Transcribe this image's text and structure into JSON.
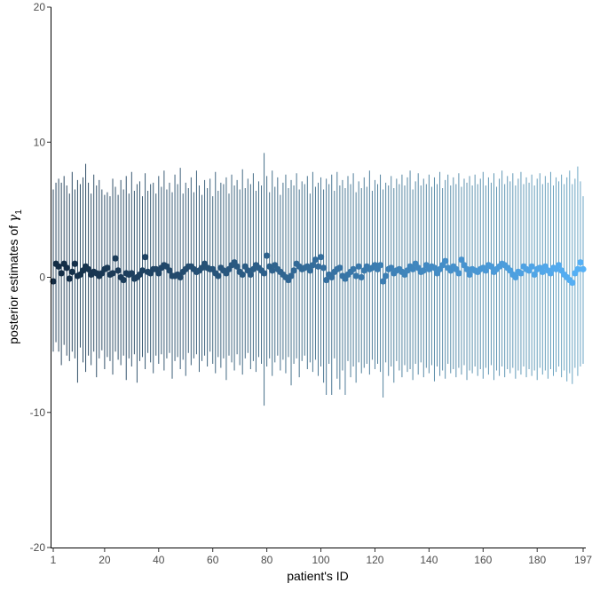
{
  "chart_data": {
    "type": "scatter",
    "title": "",
    "xlabel": "patient's ID",
    "ylabel_text": "posterior estimates of ",
    "ylabel_symbol": "γ",
    "ylabel_subscript": "1",
    "xlim": [
      1,
      197
    ],
    "ylim": [
      -20,
      20
    ],
    "x_ticks": [
      "1",
      "20",
      "40",
      "60",
      "80",
      "100",
      "120",
      "140",
      "160",
      "180",
      "197"
    ],
    "y_ticks": [
      "20",
      "10",
      "0",
      "-10",
      "-20"
    ],
    "grid": false,
    "legend": "none",
    "n_patients": 197,
    "color_gradient": [
      "#132B43",
      "#56B1F7"
    ],
    "points": [
      {
        "x": 1,
        "y": -0.3,
        "lo": -5.5,
        "hi": 6.5
      },
      {
        "x": 2,
        "y": 1.0,
        "lo": -4.8,
        "hi": 7.0
      },
      {
        "x": 3,
        "y": 0.8,
        "lo": -5.5,
        "hi": 7.3
      },
      {
        "x": 4,
        "y": 0.3,
        "lo": -6.5,
        "hi": 7.0
      },
      {
        "x": 5,
        "y": 1.0,
        "lo": -5.0,
        "hi": 7.5
      },
      {
        "x": 6,
        "y": 0.7,
        "lo": -5.8,
        "hi": 6.8
      },
      {
        "x": 7,
        "y": -0.1,
        "lo": -6.2,
        "hi": 6.2
      },
      {
        "x": 8,
        "y": 0.4,
        "lo": -5.5,
        "hi": 7.8
      },
      {
        "x": 9,
        "y": 1.0,
        "lo": -6.0,
        "hi": 6.5
      },
      {
        "x": 10,
        "y": 0.1,
        "lo": -7.8,
        "hi": 7.2
      },
      {
        "x": 11,
        "y": 0.2,
        "lo": -5.2,
        "hi": 6.9
      },
      {
        "x": 12,
        "y": 0.5,
        "lo": -6.3,
        "hi": 7.4
      },
      {
        "x": 13,
        "y": 0.8,
        "lo": -7.0,
        "hi": 8.4
      },
      {
        "x": 14,
        "y": 0.6,
        "lo": -5.8,
        "hi": 7.0
      },
      {
        "x": 15,
        "y": 0.2,
        "lo": -6.5,
        "hi": 6.2
      },
      {
        "x": 16,
        "y": 0.4,
        "lo": -5.5,
        "hi": 7.6
      },
      {
        "x": 17,
        "y": 0.3,
        "lo": -7.4,
        "hi": 6.8
      },
      {
        "x": 18,
        "y": 0.1,
        "lo": -6.0,
        "hi": 7.2
      },
      {
        "x": 19,
        "y": 0.3,
        "lo": -5.4,
        "hi": 6.5
      },
      {
        "x": 20,
        "y": 0.6,
        "lo": -6.8,
        "hi": 6.1
      },
      {
        "x": 21,
        "y": 0.7,
        "lo": -5.9,
        "hi": 6.3
      },
      {
        "x": 22,
        "y": 0.2,
        "lo": -6.2,
        "hi": 6.0
      },
      {
        "x": 23,
        "y": 0.3,
        "lo": -7.2,
        "hi": 7.3
      },
      {
        "x": 24,
        "y": 1.4,
        "lo": -5.5,
        "hi": 6.7
      },
      {
        "x": 25,
        "y": 0.5,
        "lo": -6.1,
        "hi": 6.1
      },
      {
        "x": 26,
        "y": 0.0,
        "lo": -6.5,
        "hi": 7.2
      },
      {
        "x": 27,
        "y": -0.2,
        "lo": -5.8,
        "hi": 6.5
      },
      {
        "x": 28,
        "y": 0.3,
        "lo": -7.6,
        "hi": 7.5
      },
      {
        "x": 29,
        "y": 0.2,
        "lo": -6.0,
        "hi": 6.2
      },
      {
        "x": 30,
        "y": 0.3,
        "lo": -6.6,
        "hi": 7.8
      },
      {
        "x": 31,
        "y": -0.1,
        "lo": -5.7,
        "hi": 6.4
      },
      {
        "x": 32,
        "y": 0.0,
        "lo": -7.8,
        "hi": 6.9
      },
      {
        "x": 33,
        "y": 0.2,
        "lo": -6.2,
        "hi": 7.1
      },
      {
        "x": 34,
        "y": 0.5,
        "lo": -5.9,
        "hi": 6.0
      },
      {
        "x": 35,
        "y": 1.5,
        "lo": -6.8,
        "hi": 7.7
      },
      {
        "x": 36,
        "y": 0.4,
        "lo": -5.6,
        "hi": 6.4
      },
      {
        "x": 37,
        "y": 0.3,
        "lo": -6.3,
        "hi": 6.9
      },
      {
        "x": 38,
        "y": 0.6,
        "lo": -7.1,
        "hi": 7.0
      },
      {
        "x": 39,
        "y": 0.6,
        "lo": -5.8,
        "hi": 6.2
      },
      {
        "x": 40,
        "y": 0.3,
        "lo": -6.4,
        "hi": 7.5
      },
      {
        "x": 41,
        "y": 0.7,
        "lo": -5.7,
        "hi": 6.7
      },
      {
        "x": 42,
        "y": 0.9,
        "lo": -6.9,
        "hi": 7.9
      },
      {
        "x": 43,
        "y": 0.8,
        "lo": -6.0,
        "hi": 6.5
      },
      {
        "x": 44,
        "y": 0.5,
        "lo": -5.6,
        "hi": 7.0
      },
      {
        "x": 45,
        "y": 0.1,
        "lo": -7.5,
        "hi": 6.3
      },
      {
        "x": 46,
        "y": 0.1,
        "lo": -6.2,
        "hi": 7.6
      },
      {
        "x": 47,
        "y": 0.2,
        "lo": -5.9,
        "hi": 6.9
      },
      {
        "x": 48,
        "y": 0.0,
        "lo": -6.8,
        "hi": 8.1
      },
      {
        "x": 49,
        "y": 0.4,
        "lo": -6.1,
        "hi": 6.2
      },
      {
        "x": 50,
        "y": 0.6,
        "lo": -7.3,
        "hi": 7.0
      },
      {
        "x": 51,
        "y": 0.8,
        "lo": -5.6,
        "hi": 6.6
      },
      {
        "x": 52,
        "y": 0.8,
        "lo": -6.5,
        "hi": 7.4
      },
      {
        "x": 53,
        "y": 0.6,
        "lo": -6.0,
        "hi": 6.3
      },
      {
        "x": 54,
        "y": 0.4,
        "lo": -5.7,
        "hi": 7.9
      },
      {
        "x": 55,
        "y": 0.5,
        "lo": -7.0,
        "hi": 6.8
      },
      {
        "x": 56,
        "y": 0.7,
        "lo": -6.2,
        "hi": 6.1
      },
      {
        "x": 57,
        "y": 1.0,
        "lo": -5.8,
        "hi": 7.2
      },
      {
        "x": 58,
        "y": 0.7,
        "lo": -6.6,
        "hi": 6.6
      },
      {
        "x": 59,
        "y": 0.6,
        "lo": -5.5,
        "hi": 7.3
      },
      {
        "x": 60,
        "y": 0.6,
        "lo": -6.4,
        "hi": 6.0
      },
      {
        "x": 61,
        "y": 0.3,
        "lo": -7.1,
        "hi": 7.8
      },
      {
        "x": 62,
        "y": 0.1,
        "lo": -5.9,
        "hi": 6.4
      },
      {
        "x": 63,
        "y": 0.7,
        "lo": -6.7,
        "hi": 7.0
      },
      {
        "x": 64,
        "y": 0.5,
        "lo": -6.0,
        "hi": 6.9
      },
      {
        "x": 65,
        "y": 0.3,
        "lo": -7.6,
        "hi": 7.4
      },
      {
        "x": 66,
        "y": 0.6,
        "lo": -5.8,
        "hi": 6.2
      },
      {
        "x": 67,
        "y": 0.9,
        "lo": -6.3,
        "hi": 7.6
      },
      {
        "x": 68,
        "y": 1.1,
        "lo": -6.9,
        "hi": 6.8
      },
      {
        "x": 69,
        "y": 0.8,
        "lo": -5.7,
        "hi": 7.2
      },
      {
        "x": 70,
        "y": 0.4,
        "lo": -6.5,
        "hi": 6.5
      },
      {
        "x": 71,
        "y": 0.2,
        "lo": -7.2,
        "hi": 8.0
      },
      {
        "x": 72,
        "y": 0.8,
        "lo": -6.0,
        "hi": 6.6
      },
      {
        "x": 73,
        "y": 0.5,
        "lo": -5.6,
        "hi": 7.3
      },
      {
        "x": 74,
        "y": 0.2,
        "lo": -6.8,
        "hi": 6.9
      },
      {
        "x": 75,
        "y": 0.6,
        "lo": -6.2,
        "hi": 7.7
      },
      {
        "x": 76,
        "y": 0.9,
        "lo": -7.0,
        "hi": 6.4
      },
      {
        "x": 77,
        "y": 0.7,
        "lo": -5.9,
        "hi": 7.1
      },
      {
        "x": 78,
        "y": 0.5,
        "lo": -6.4,
        "hi": 6.8
      },
      {
        "x": 79,
        "y": 0.3,
        "lo": -9.5,
        "hi": 9.2
      },
      {
        "x": 80,
        "y": 1.6,
        "lo": -6.6,
        "hi": 7.5
      },
      {
        "x": 81,
        "y": 0.8,
        "lo": -6.0,
        "hi": 6.3
      },
      {
        "x": 82,
        "y": 0.5,
        "lo": -7.3,
        "hi": 7.9
      },
      {
        "x": 83,
        "y": 0.9,
        "lo": -6.3,
        "hi": 6.7
      },
      {
        "x": 84,
        "y": 0.6,
        "lo": -5.8,
        "hi": 7.4
      },
      {
        "x": 85,
        "y": 0.4,
        "lo": -6.9,
        "hi": 6.1
      },
      {
        "x": 86,
        "y": 0.2,
        "lo": -6.1,
        "hi": 7.0
      },
      {
        "x": 87,
        "y": 0.0,
        "lo": -7.1,
        "hi": 7.6
      },
      {
        "x": 88,
        "y": -0.2,
        "lo": -5.9,
        "hi": 6.6
      },
      {
        "x": 89,
        "y": 0.1,
        "lo": -8.0,
        "hi": 7.2
      },
      {
        "x": 90,
        "y": 0.5,
        "lo": -6.4,
        "hi": 6.8
      },
      {
        "x": 91,
        "y": 1.0,
        "lo": -6.0,
        "hi": 7.7
      },
      {
        "x": 92,
        "y": 0.8,
        "lo": -7.4,
        "hi": 6.5
      },
      {
        "x": 93,
        "y": 0.6,
        "lo": -6.2,
        "hi": 7.1
      },
      {
        "x": 94,
        "y": 0.7,
        "lo": -5.8,
        "hi": 6.9
      },
      {
        "x": 95,
        "y": 0.8,
        "lo": -6.8,
        "hi": 7.5
      },
      {
        "x": 96,
        "y": 0.5,
        "lo": -6.3,
        "hi": 6.2
      },
      {
        "x": 97,
        "y": 0.9,
        "lo": -7.0,
        "hi": 7.8
      },
      {
        "x": 98,
        "y": 1.3,
        "lo": -6.1,
        "hi": 6.7
      },
      {
        "x": 99,
        "y": 0.8,
        "lo": -7.3,
        "hi": 7.0
      },
      {
        "x": 100,
        "y": 1.5,
        "lo": -6.6,
        "hi": 7.4
      },
      {
        "x": 101,
        "y": 0.7,
        "lo": -7.8,
        "hi": 6.5
      },
      {
        "x": 102,
        "y": -0.2,
        "lo": -8.7,
        "hi": 7.3
      },
      {
        "x": 103,
        "y": 0.2,
        "lo": -6.4,
        "hi": 6.9
      },
      {
        "x": 104,
        "y": 0.0,
        "lo": -8.7,
        "hi": 7.6
      },
      {
        "x": 105,
        "y": 0.4,
        "lo": -6.0,
        "hi": 6.4
      },
      {
        "x": 106,
        "y": 0.6,
        "lo": -7.5,
        "hi": 7.8
      },
      {
        "x": 107,
        "y": 0.7,
        "lo": -8.3,
        "hi": 6.8
      },
      {
        "x": 108,
        "y": 0.1,
        "lo": -6.9,
        "hi": 7.2
      },
      {
        "x": 109,
        "y": -0.1,
        "lo": -8.7,
        "hi": 6.6
      },
      {
        "x": 110,
        "y": 0.2,
        "lo": -6.2,
        "hi": 7.5
      },
      {
        "x": 111,
        "y": 0.4,
        "lo": -7.4,
        "hi": 6.9
      },
      {
        "x": 112,
        "y": 0.6,
        "lo": -6.6,
        "hi": 7.7
      },
      {
        "x": 113,
        "y": 0.1,
        "lo": -7.8,
        "hi": 6.3
      },
      {
        "x": 114,
        "y": 0.8,
        "lo": -6.3,
        "hi": 7.1
      },
      {
        "x": 115,
        "y": 0.0,
        "lo": -7.1,
        "hi": 6.6
      },
      {
        "x": 116,
        "y": 0.5,
        "lo": -6.7,
        "hi": 7.4
      },
      {
        "x": 117,
        "y": 0.8,
        "lo": -6.4,
        "hi": 6.7
      },
      {
        "x": 118,
        "y": 0.6,
        "lo": -7.2,
        "hi": 7.9
      },
      {
        "x": 119,
        "y": 0.7,
        "lo": -6.1,
        "hi": 6.4
      },
      {
        "x": 120,
        "y": 0.9,
        "lo": -6.8,
        "hi": 7.2
      },
      {
        "x": 121,
        "y": 0.6,
        "lo": -6.4,
        "hi": 6.9
      },
      {
        "x": 122,
        "y": 0.9,
        "lo": -7.0,
        "hi": 7.6
      },
      {
        "x": 123,
        "y": -0.3,
        "lo": -8.9,
        "hi": 6.5
      },
      {
        "x": 124,
        "y": 0.1,
        "lo": -6.3,
        "hi": 7.0
      },
      {
        "x": 125,
        "y": 0.6,
        "lo": -7.3,
        "hi": 6.8
      },
      {
        "x": 126,
        "y": 0.7,
        "lo": -6.6,
        "hi": 7.5
      },
      {
        "x": 127,
        "y": 0.3,
        "lo": -7.8,
        "hi": 6.6
      },
      {
        "x": 128,
        "y": 0.5,
        "lo": -6.2,
        "hi": 7.3
      },
      {
        "x": 129,
        "y": 0.6,
        "lo": -6.9,
        "hi": 6.9
      },
      {
        "x": 130,
        "y": 0.4,
        "lo": -7.4,
        "hi": 7.6
      },
      {
        "x": 131,
        "y": 0.2,
        "lo": -6.5,
        "hi": 6.8
      },
      {
        "x": 132,
        "y": 0.5,
        "lo": -7.0,
        "hi": 7.4
      },
      {
        "x": 133,
        "y": 0.8,
        "lo": -6.8,
        "hi": 7.9
      },
      {
        "x": 134,
        "y": 0.6,
        "lo": -7.6,
        "hi": 6.5
      },
      {
        "x": 135,
        "y": 1.0,
        "lo": -6.4,
        "hi": 7.1
      },
      {
        "x": 136,
        "y": 0.7,
        "lo": -7.2,
        "hi": 7.7
      },
      {
        "x": 137,
        "y": 0.4,
        "lo": -6.3,
        "hi": 6.8
      },
      {
        "x": 138,
        "y": 0.5,
        "lo": -7.4,
        "hi": 7.3
      },
      {
        "x": 139,
        "y": 0.9,
        "lo": -6.7,
        "hi": 6.9
      },
      {
        "x": 140,
        "y": 0.6,
        "lo": -7.1,
        "hi": 7.6
      },
      {
        "x": 141,
        "y": 0.8,
        "lo": -6.5,
        "hi": 6.7
      },
      {
        "x": 142,
        "y": 0.7,
        "lo": -7.7,
        "hi": 7.4
      },
      {
        "x": 143,
        "y": 0.3,
        "lo": -6.6,
        "hi": 6.9
      },
      {
        "x": 144,
        "y": 0.6,
        "lo": -7.3,
        "hi": 7.8
      },
      {
        "x": 145,
        "y": 0.9,
        "lo": -6.9,
        "hi": 6.6
      },
      {
        "x": 146,
        "y": 1.2,
        "lo": -7.5,
        "hi": 7.2
      },
      {
        "x": 147,
        "y": 0.7,
        "lo": -6.4,
        "hi": 7.6
      },
      {
        "x": 148,
        "y": 0.5,
        "lo": -7.1,
        "hi": 6.8
      },
      {
        "x": 149,
        "y": 0.8,
        "lo": -6.8,
        "hi": 7.4
      },
      {
        "x": 150,
        "y": 0.6,
        "lo": -7.4,
        "hi": 6.9
      },
      {
        "x": 151,
        "y": 0.3,
        "lo": -6.7,
        "hi": 7.7
      },
      {
        "x": 152,
        "y": 1.3,
        "lo": -7.2,
        "hi": 6.7
      },
      {
        "x": 153,
        "y": 0.9,
        "lo": -6.5,
        "hi": 7.3
      },
      {
        "x": 154,
        "y": 0.6,
        "lo": -7.6,
        "hi": 7.0
      },
      {
        "x": 155,
        "y": 0.2,
        "lo": -6.9,
        "hi": 7.5
      },
      {
        "x": 156,
        "y": 0.6,
        "lo": -7.1,
        "hi": 6.8
      },
      {
        "x": 157,
        "y": 0.5,
        "lo": -6.6,
        "hi": 7.6
      },
      {
        "x": 158,
        "y": 0.4,
        "lo": -7.3,
        "hi": 6.9
      },
      {
        "x": 159,
        "y": 0.6,
        "lo": -6.8,
        "hi": 7.3
      },
      {
        "x": 160,
        "y": 0.7,
        "lo": -7.5,
        "hi": 7.8
      },
      {
        "x": 161,
        "y": 0.5,
        "lo": -6.7,
        "hi": 6.8
      },
      {
        "x": 162,
        "y": 0.9,
        "lo": -7.2,
        "hi": 7.4
      },
      {
        "x": 163,
        "y": 0.8,
        "lo": -6.5,
        "hi": 7.0
      },
      {
        "x": 164,
        "y": 0.4,
        "lo": -7.6,
        "hi": 7.7
      },
      {
        "x": 165,
        "y": 0.6,
        "lo": -6.9,
        "hi": 6.7
      },
      {
        "x": 166,
        "y": 0.8,
        "lo": -7.3,
        "hi": 7.3
      },
      {
        "x": 167,
        "y": 1.0,
        "lo": -6.6,
        "hi": 7.9
      },
      {
        "x": 168,
        "y": 0.9,
        "lo": -7.4,
        "hi": 6.9
      },
      {
        "x": 169,
        "y": 0.7,
        "lo": -6.8,
        "hi": 7.5
      },
      {
        "x": 170,
        "y": 0.5,
        "lo": -7.1,
        "hi": 7.1
      },
      {
        "x": 171,
        "y": 0.2,
        "lo": -6.7,
        "hi": 7.7
      },
      {
        "x": 172,
        "y": 0.0,
        "lo": -7.5,
        "hi": 6.8
      },
      {
        "x": 173,
        "y": 0.4,
        "lo": -6.9,
        "hi": 7.3
      },
      {
        "x": 174,
        "y": 0.3,
        "lo": -7.2,
        "hi": 7.8
      },
      {
        "x": 175,
        "y": 0.8,
        "lo": -6.6,
        "hi": 6.9
      },
      {
        "x": 176,
        "y": 0.6,
        "lo": -7.4,
        "hi": 7.4
      },
      {
        "x": 177,
        "y": 0.5,
        "lo": -6.8,
        "hi": 7.0
      },
      {
        "x": 178,
        "y": 0.8,
        "lo": -7.3,
        "hi": 7.6
      },
      {
        "x": 179,
        "y": 0.2,
        "lo": -6.9,
        "hi": 6.8
      },
      {
        "x": 180,
        "y": 0.6,
        "lo": -7.6,
        "hi": 7.3
      },
      {
        "x": 181,
        "y": 0.7,
        "lo": -6.7,
        "hi": 7.7
      },
      {
        "x": 182,
        "y": 0.4,
        "lo": -7.2,
        "hi": 6.9
      },
      {
        "x": 183,
        "y": 0.8,
        "lo": -6.9,
        "hi": 7.5
      },
      {
        "x": 184,
        "y": 0.5,
        "lo": -7.5,
        "hi": 7.0
      },
      {
        "x": 185,
        "y": 0.3,
        "lo": -6.8,
        "hi": 7.8
      },
      {
        "x": 186,
        "y": 0.7,
        "lo": -7.3,
        "hi": 6.8
      },
      {
        "x": 187,
        "y": 0.6,
        "lo": -7.0,
        "hi": 7.4
      },
      {
        "x": 188,
        "y": 0.9,
        "lo": -6.6,
        "hi": 7.1
      },
      {
        "x": 189,
        "y": 0.5,
        "lo": -7.4,
        "hi": 7.6
      },
      {
        "x": 190,
        "y": 0.2,
        "lo": -6.9,
        "hi": 6.9
      },
      {
        "x": 191,
        "y": 0.0,
        "lo": -7.7,
        "hi": 7.4
      },
      {
        "x": 192,
        "y": -0.2,
        "lo": -7.1,
        "hi": 7.9
      },
      {
        "x": 193,
        "y": -0.4,
        "lo": -7.9,
        "hi": 6.9
      },
      {
        "x": 194,
        "y": 0.3,
        "lo": -6.7,
        "hi": 7.3
      },
      {
        "x": 195,
        "y": 0.6,
        "lo": -7.3,
        "hi": 8.2
      },
      {
        "x": 196,
        "y": 1.1,
        "lo": -6.6,
        "hi": 7.1
      },
      {
        "x": 197,
        "y": 0.6,
        "lo": -6.4,
        "hi": 6.0
      }
    ]
  }
}
